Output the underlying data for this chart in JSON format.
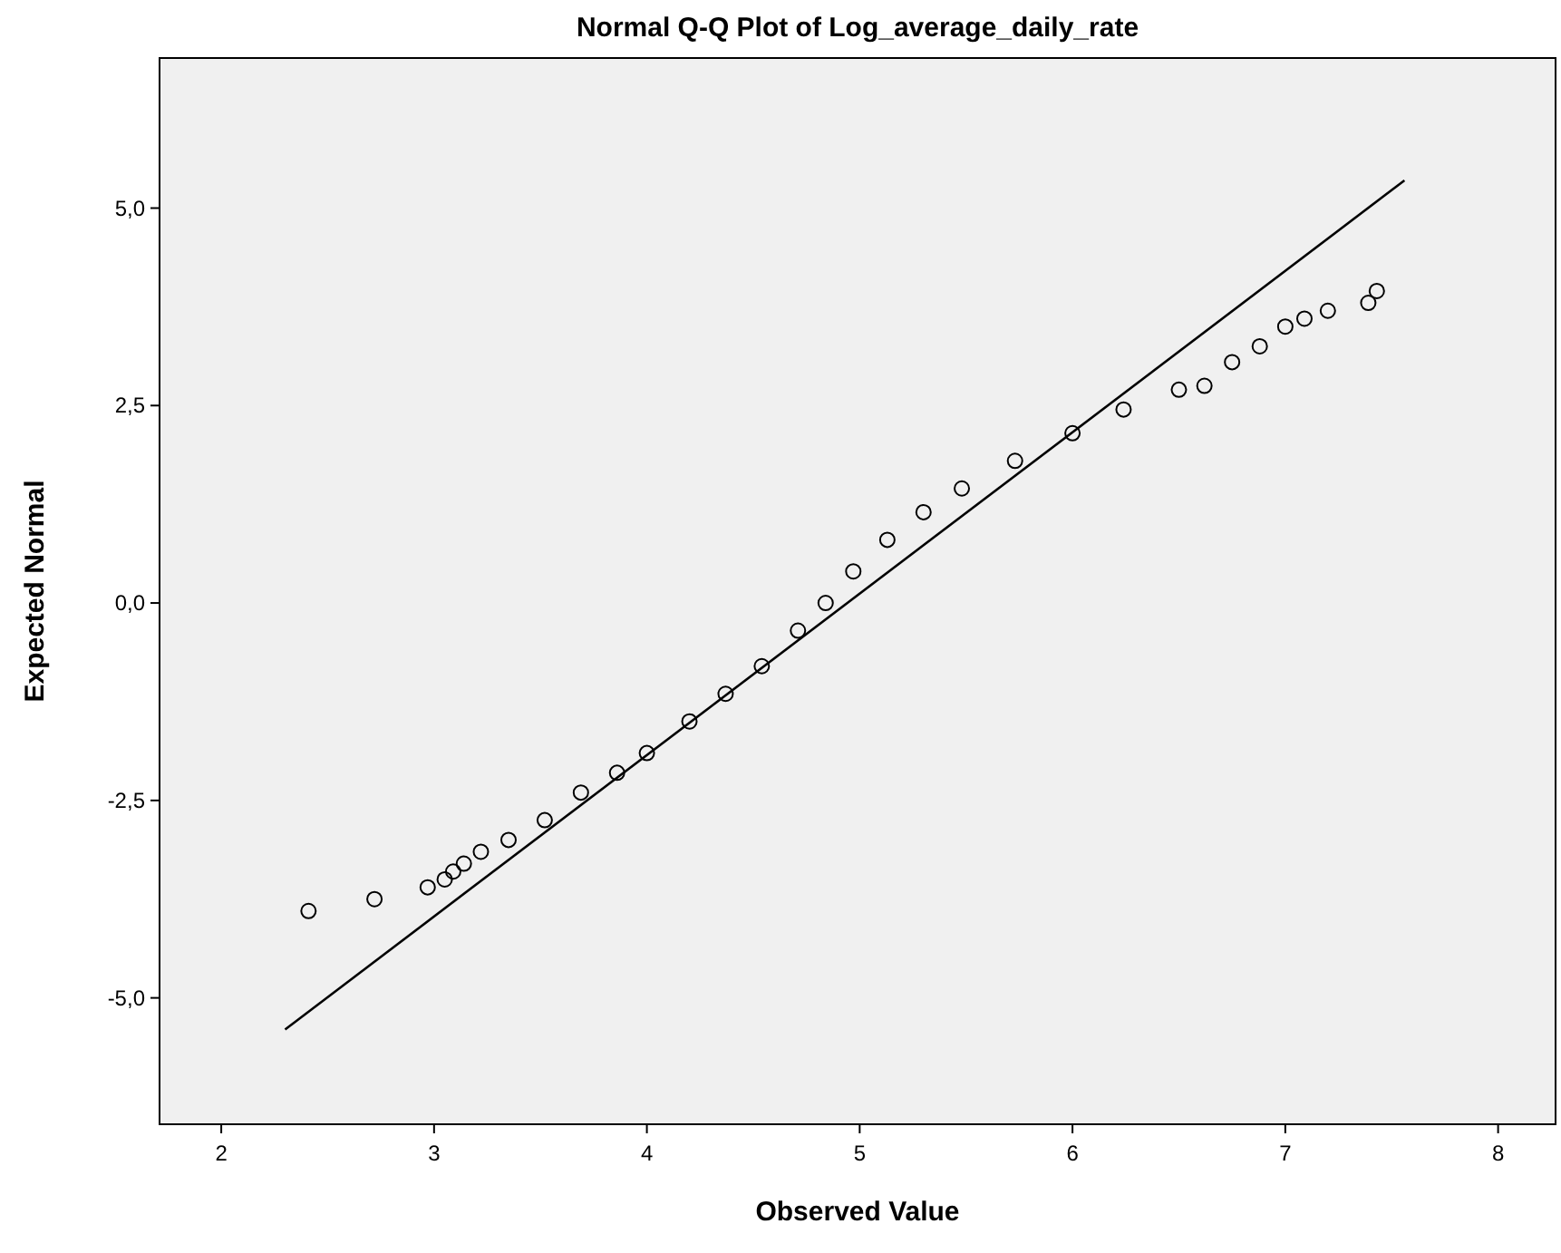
{
  "chart_data": {
    "type": "scatter",
    "title": "Normal Q-Q Plot of Log_average_daily_rate",
    "xlabel": "Observed Value",
    "ylabel": "Expected Normal",
    "xlim": [
      1.71,
      8.27
    ],
    "xticks": [
      2,
      3,
      4,
      5,
      6,
      7,
      8
    ],
    "ylim": [
      -6.6,
      6.9
    ],
    "yticks": [
      {
        "value": -5,
        "label": "-5,0"
      },
      {
        "value": -2.5,
        "label": "-2,5"
      },
      {
        "value": 0,
        "label": "0,0"
      },
      {
        "value": 2.5,
        "label": "2,5"
      },
      {
        "value": 5,
        "label": "5,0"
      }
    ],
    "grid": false,
    "series": [
      {
        "marker": "circle",
        "color": "#000000",
        "x": [
          2.41,
          2.72,
          2.97,
          3.05,
          3.09,
          3.14,
          3.22,
          3.35,
          3.52,
          3.69,
          3.86,
          4.0,
          4.2,
          4.37,
          4.54,
          4.71,
          4.84,
          4.97,
          5.13,
          5.3,
          5.48,
          5.73,
          6.0,
          6.24,
          6.5,
          6.62,
          6.75,
          6.88,
          7.0,
          7.09,
          7.2,
          7.39,
          7.43
        ],
        "values": [
          -3.9,
          -3.75,
          -3.6,
          -3.5,
          -3.4,
          -3.3,
          -3.15,
          -3.0,
          -2.75,
          -2.4,
          -2.15,
          -1.9,
          -1.5,
          -1.15,
          -0.8,
          -0.35,
          0.0,
          0.4,
          0.8,
          1.15,
          1.45,
          1.8,
          2.15,
          2.45,
          2.7,
          2.75,
          3.05,
          3.25,
          3.5,
          3.6,
          3.7,
          3.8,
          3.95
        ]
      },
      {
        "type": "line",
        "marker": "none",
        "line_style": "solid",
        "color": "#000000",
        "x": [
          2.3,
          7.56
        ],
        "values": [
          -5.4,
          5.35
        ]
      }
    ]
  }
}
